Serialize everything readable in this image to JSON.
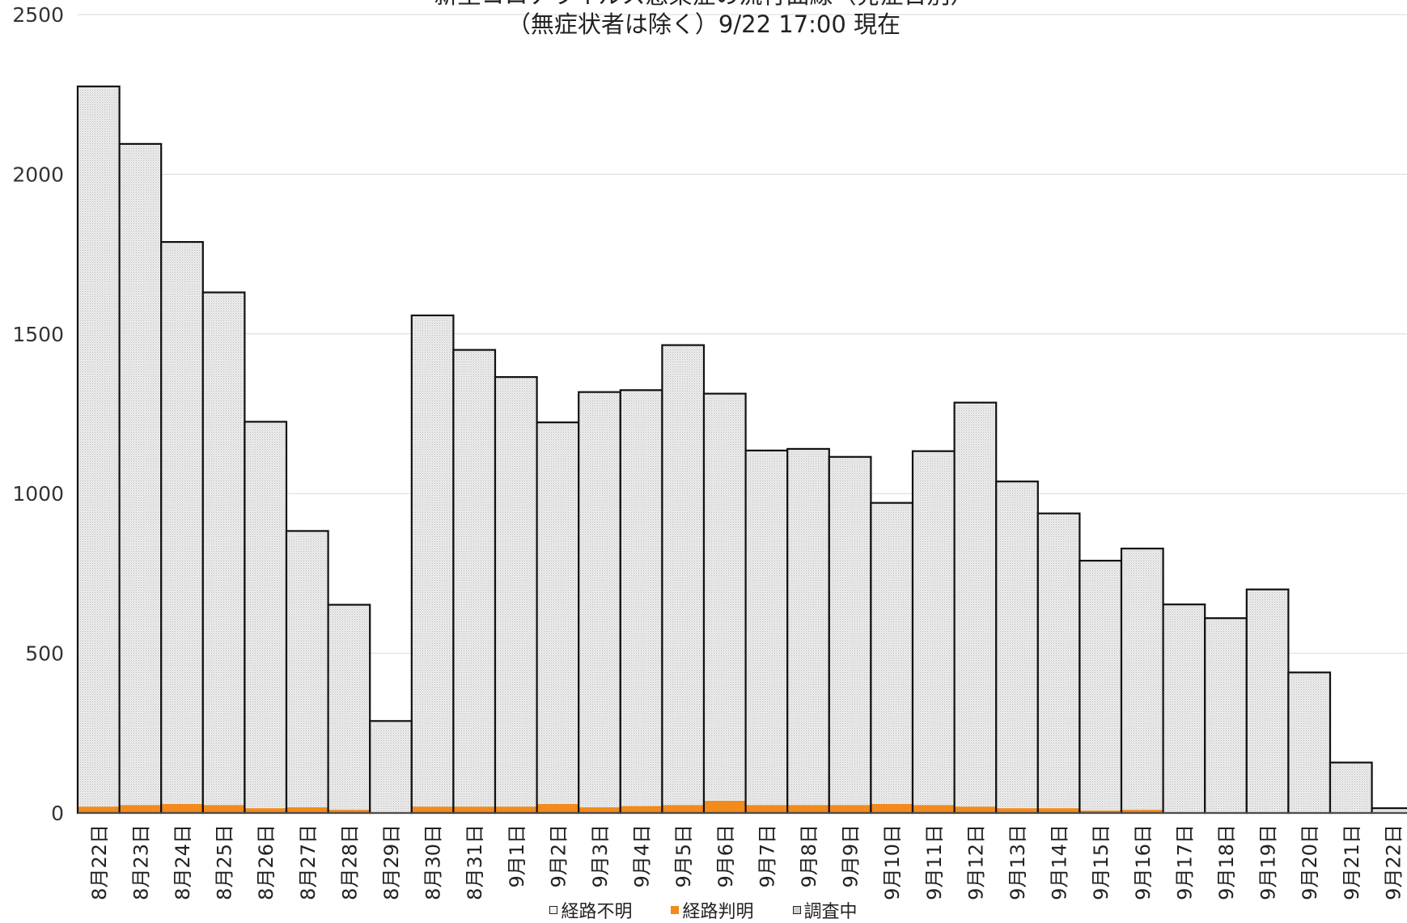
{
  "chart_data": {
    "type": "bar",
    "stacked": true,
    "title_lines": [
      "新型コロナウイルス感染症の流行曲線（発症日別）",
      "（無症状者は除く）9/22 17:00 現在"
    ],
    "categories": [
      "8月22日",
      "8月23日",
      "8月24日",
      "8月25日",
      "8月26日",
      "8月27日",
      "8月28日",
      "8月29日",
      "8月30日",
      "8月31日",
      "9月1日",
      "9月2日",
      "9月3日",
      "9月4日",
      "9月5日",
      "9月6日",
      "9月7日",
      "9月8日",
      "9月9日",
      "9月10日",
      "9月11日",
      "9月12日",
      "9月13日",
      "9月14日",
      "9月15日",
      "9月16日",
      "9月17日",
      "9月18日",
      "9月19日",
      "9月20日",
      "9月21日",
      "9月22日"
    ],
    "series": [
      {
        "name": "経路判明",
        "color": "#f28a1c",
        "values": [
          20,
          25,
          28,
          25,
          15,
          18,
          10,
          3,
          20,
          20,
          20,
          28,
          18,
          22,
          25,
          38,
          25,
          25,
          25,
          28,
          25,
          20,
          15,
          15,
          8,
          10,
          3,
          0,
          0,
          0,
          0,
          0
        ]
      },
      {
        "name": "経路不明",
        "color": "#e6e6e6",
        "values": [
          2255,
          2070,
          1760,
          1605,
          1210,
          865,
          642,
          285,
          1538,
          1430,
          1345,
          1195,
          1300,
          1302,
          1440,
          1275,
          1110,
          1115,
          1090,
          943,
          1108,
          1265,
          1023,
          923,
          782,
          818,
          650,
          610,
          700,
          440,
          158,
          15
        ]
      },
      {
        "name": "調査中",
        "color": "#e6e6e6",
        "values": [
          0,
          0,
          0,
          0,
          0,
          0,
          0,
          0,
          0,
          0,
          0,
          0,
          0,
          0,
          0,
          0,
          0,
          0,
          0,
          0,
          0,
          0,
          0,
          0,
          0,
          0,
          0,
          0,
          0,
          0,
          0,
          0
        ]
      }
    ],
    "legend_order": [
      "経路不明",
      "経路判明",
      "調査中"
    ],
    "y_ticks": [
      "0",
      "500",
      "1000",
      "1500",
      "2000",
      "2500"
    ],
    "ylim": [
      0,
      2500
    ],
    "grid": true,
    "legend_position": "bottom"
  }
}
